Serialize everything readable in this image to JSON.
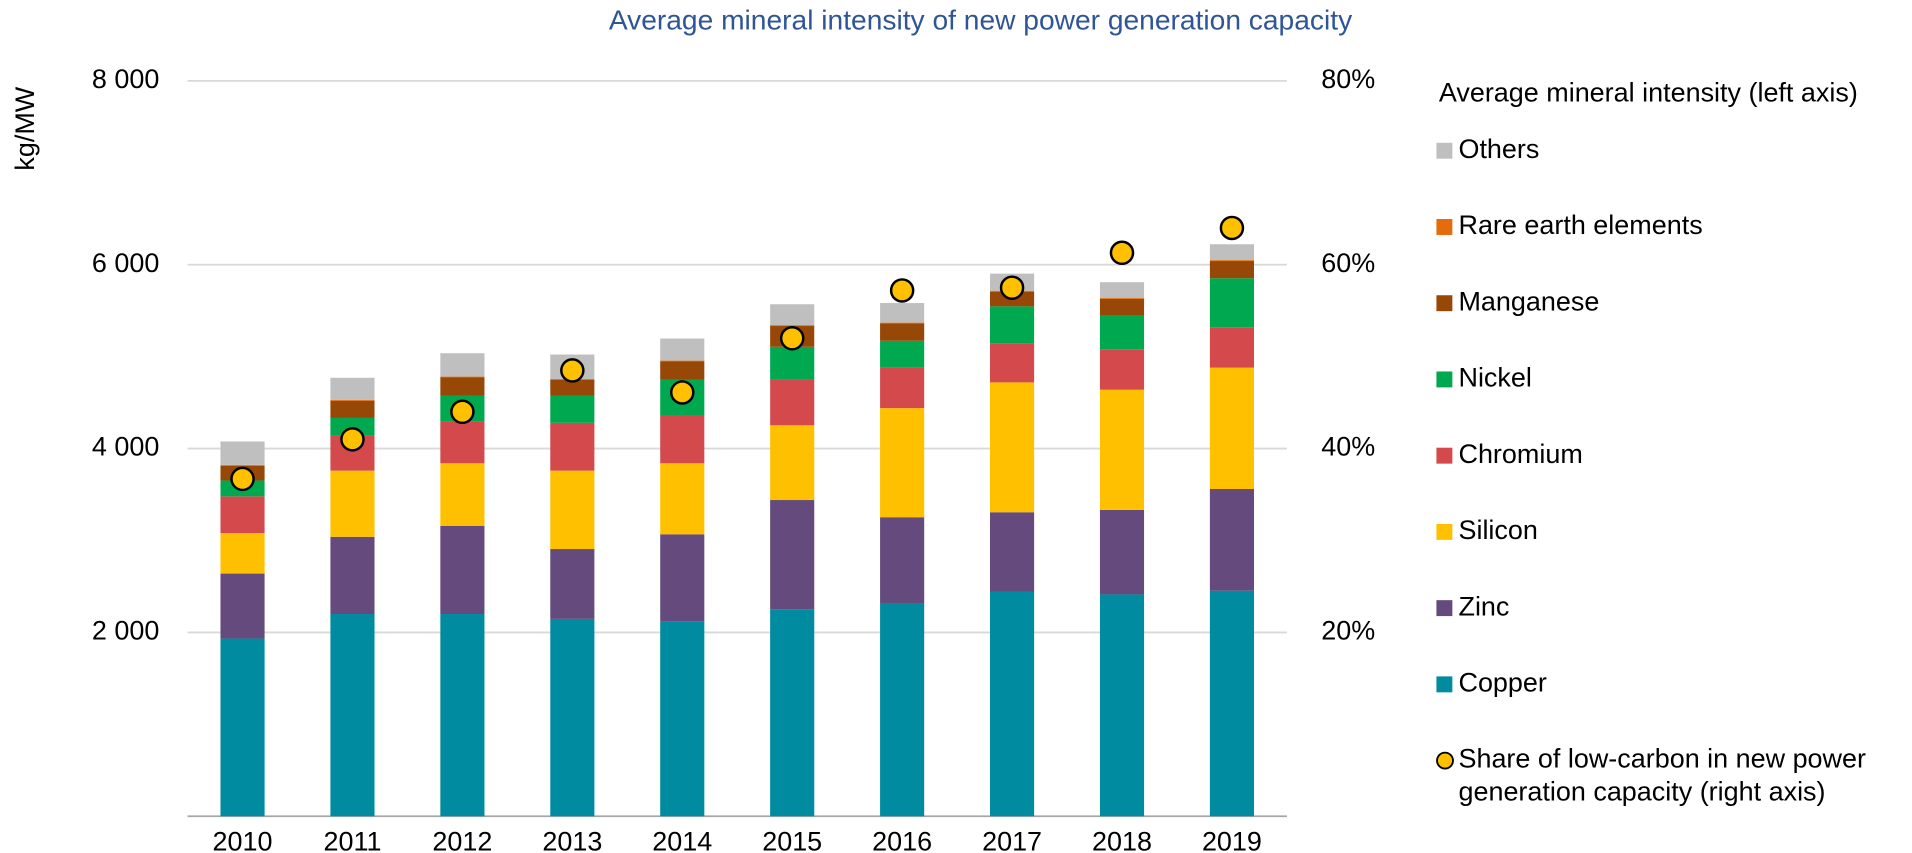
{
  "chart_data": {
    "type": "stacked-bar",
    "title": "Average mineral intensity of new power generation capacity",
    "ylabel": "kg/MW",
    "legend_title": "Average mineral intensity (left axis)",
    "categories": [
      "2010",
      "2011",
      "2012",
      "2013",
      "2014",
      "2015",
      "2016",
      "2017",
      "2018",
      "2019"
    ],
    "ylim": [
      0,
      8000
    ],
    "yticks": [
      {
        "value": 2000,
        "label": "2 000"
      },
      {
        "value": 4000,
        "label": "4 000"
      },
      {
        "value": 6000,
        "label": "6 000"
      },
      {
        "value": 8000,
        "label": "8 000"
      }
    ],
    "y2lim": [
      0,
      80
    ],
    "y2ticks": [
      {
        "value": 20,
        "label": "20%"
      },
      {
        "value": 40,
        "label": "40%"
      },
      {
        "value": 60,
        "label": "60%"
      },
      {
        "value": 80,
        "label": "80%"
      }
    ],
    "grid": true,
    "legend": "right",
    "series": [
      {
        "name": "Copper",
        "color": "#008ba0",
        "values": [
          1933,
          2200,
          2200,
          2147,
          2120,
          2253,
          2320,
          2440,
          2413,
          2453
        ]
      },
      {
        "name": "Zinc",
        "color": "#644a7d",
        "values": [
          707,
          840,
          960,
          760,
          947,
          1187,
          933,
          867,
          920,
          1107
        ]
      },
      {
        "name": "Silicon",
        "color": "#ffc000",
        "values": [
          440,
          720,
          680,
          853,
          773,
          813,
          1187,
          1413,
          1307,
          1320
        ]
      },
      {
        "name": "Chromium",
        "color": "#d44a4c",
        "values": [
          400,
          387,
          453,
          520,
          520,
          494,
          440,
          427,
          440,
          440
        ]
      },
      {
        "name": "Nickel",
        "color": "#00a84f",
        "values": [
          173,
          186,
          280,
          293,
          387,
          360,
          293,
          400,
          373,
          533
        ]
      },
      {
        "name": "Manganese",
        "color": "#974706",
        "values": [
          160,
          187,
          200,
          174,
          200,
          226,
          187,
          160,
          174,
          187
        ]
      },
      {
        "name": "Rare earth elements",
        "color": "#e46c0a",
        "values": [
          10,
          10,
          10,
          10,
          10,
          10,
          10,
          10,
          10,
          10
        ]
      },
      {
        "name": "Others",
        "color": "#bfbfbf",
        "values": [
          254,
          240,
          254,
          266,
          240,
          227,
          213,
          186,
          173,
          173
        ]
      },
      {
        "name": "Share of low-carbon in new power generation capacity (right axis)",
        "color": "#ffc000",
        "axis": "y2",
        "type": "scatter",
        "values": [
          36.7,
          41,
          44,
          48.5,
          46.1,
          52,
          57.2,
          57.5,
          61.3,
          64
        ]
      }
    ]
  }
}
